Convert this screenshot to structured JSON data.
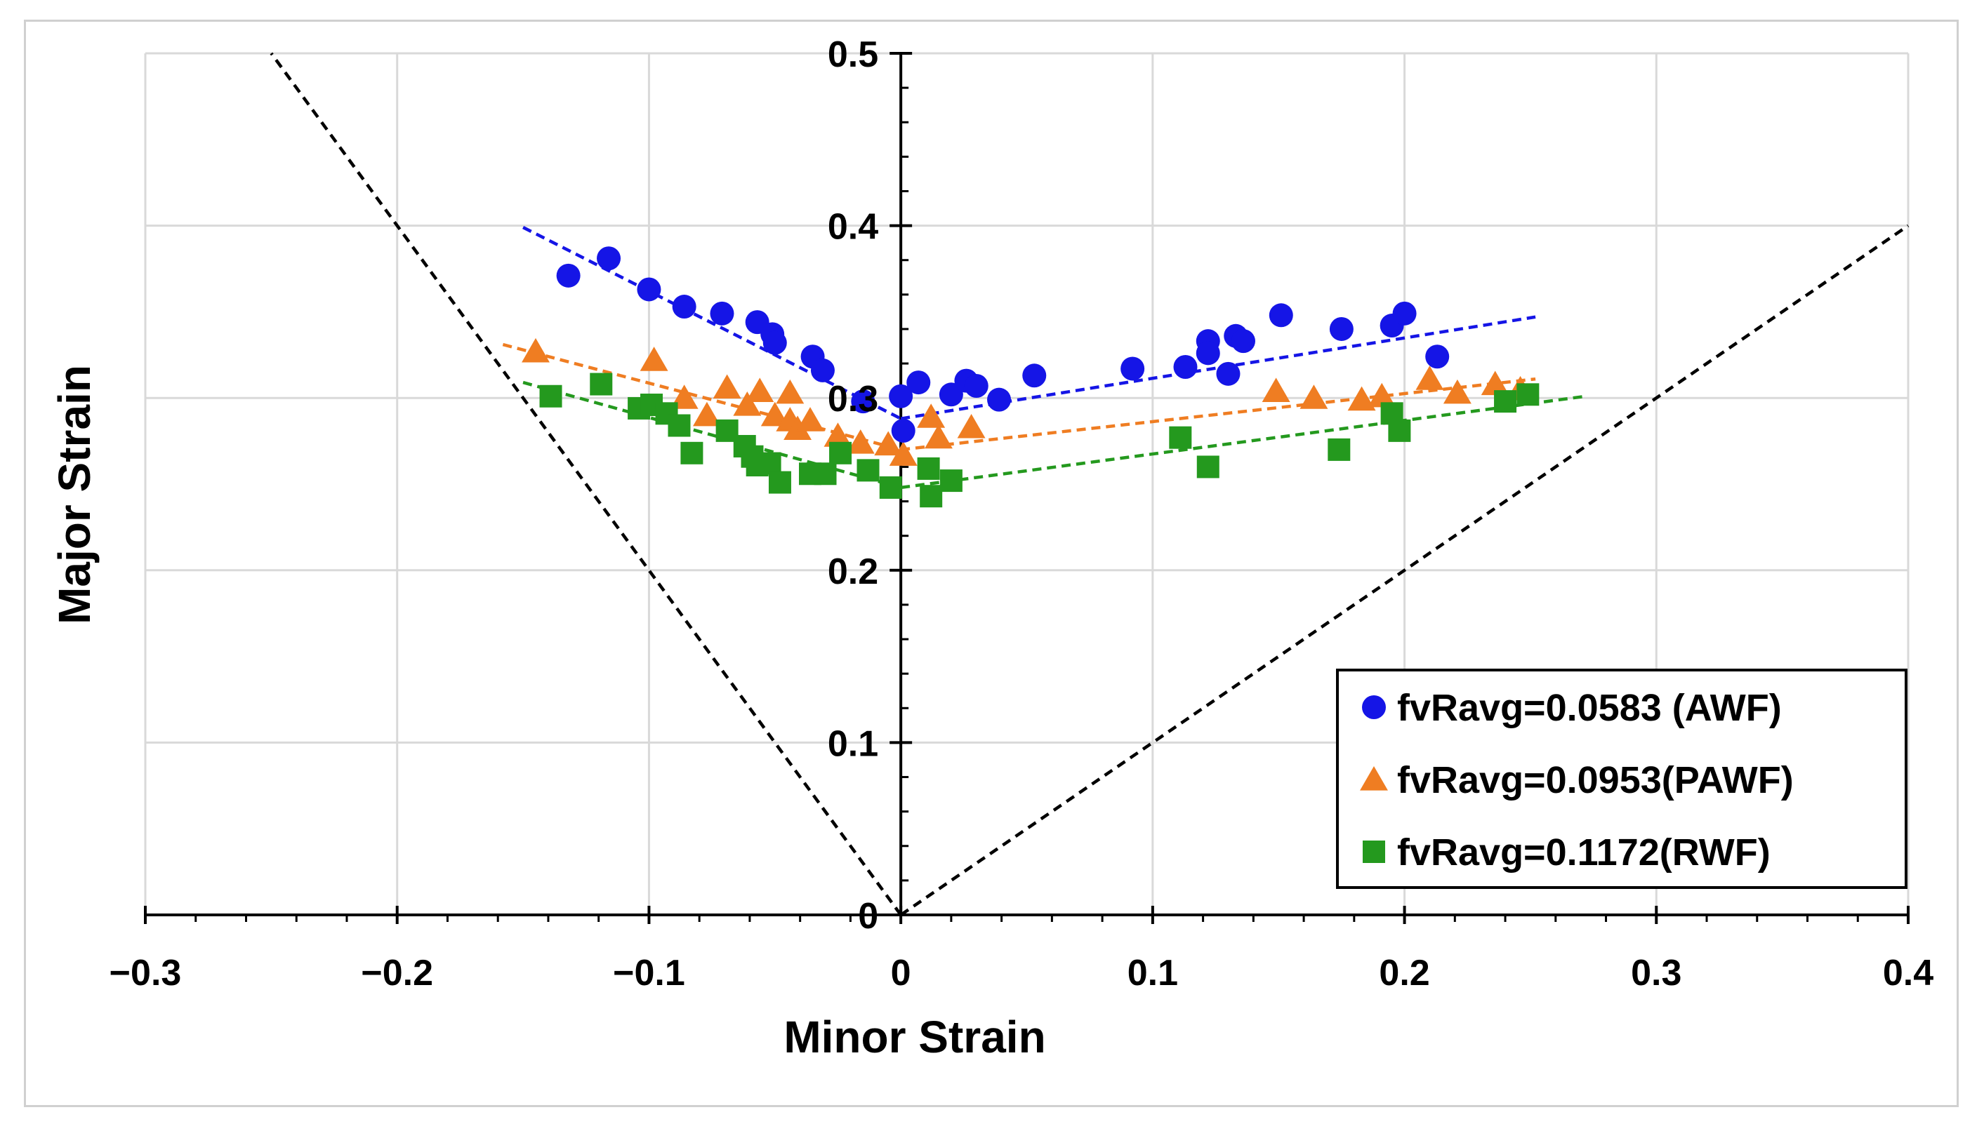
{
  "chart_data": {
    "type": "scatter",
    "title": "",
    "xlabel": "Minor Strain",
    "ylabel": "Major Strain",
    "xlim": [
      -0.3,
      0.4
    ],
    "ylim": [
      0,
      0.5
    ],
    "x_ticks": [
      -0.3,
      -0.2,
      -0.1,
      0,
      0.1,
      0.2,
      0.3,
      0.4
    ],
    "x_tick_labels": [
      "−0.3",
      "−0.2",
      "−0.1",
      "0",
      "0.1",
      "0.2",
      "0.3",
      "0.4"
    ],
    "y_ticks": [
      0,
      0.1,
      0.2,
      0.3,
      0.4,
      0.5
    ],
    "y_tick_labels": [
      "0",
      "0.1",
      "0.2",
      "0.3",
      "0.4",
      "0.5"
    ],
    "grid": true,
    "legend_position": "bottom-right",
    "reference_lines": [
      {
        "name": "left-limit-line",
        "color": "#000000",
        "x": [
          0,
          -0.25
        ],
        "y": [
          0,
          0.5
        ]
      },
      {
        "name": "right-limit-line",
        "color": "#000000",
        "x": [
          0,
          0.4
        ],
        "y": [
          0,
          0.4
        ]
      }
    ],
    "series": [
      {
        "name": "fvRavg=0.0583 (AWF)",
        "marker": "circle",
        "color": "#1515e6",
        "points": [
          [
            -0.132,
            0.371
          ],
          [
            -0.116,
            0.381
          ],
          [
            -0.1,
            0.363
          ],
          [
            -0.086,
            0.353
          ],
          [
            -0.071,
            0.349
          ],
          [
            -0.057,
            0.344
          ],
          [
            -0.051,
            0.337
          ],
          [
            -0.05,
            0.332
          ],
          [
            -0.035,
            0.324
          ],
          [
            -0.031,
            0.316
          ],
          [
            -0.015,
            0.298
          ],
          [
            0.0,
            0.301
          ],
          [
            0.001,
            0.281
          ],
          [
            0.007,
            0.309
          ],
          [
            0.02,
            0.302
          ],
          [
            0.026,
            0.31
          ],
          [
            0.03,
            0.307
          ],
          [
            0.039,
            0.299
          ],
          [
            0.053,
            0.313
          ],
          [
            0.092,
            0.317
          ],
          [
            0.113,
            0.318
          ],
          [
            0.122,
            0.333
          ],
          [
            0.122,
            0.326
          ],
          [
            0.13,
            0.314
          ],
          [
            0.133,
            0.336
          ],
          [
            0.136,
            0.333
          ],
          [
            0.151,
            0.348
          ],
          [
            0.175,
            0.34
          ],
          [
            0.195,
            0.342
          ],
          [
            0.2,
            0.349
          ],
          [
            0.213,
            0.324
          ]
        ],
        "trendlines": [
          {
            "x": [
              -0.15,
              0.0
            ],
            "y": [
              0.399,
              0.288
            ]
          },
          {
            "x": [
              0.0,
              0.252
            ],
            "y": [
              0.288,
              0.347
            ]
          }
        ]
      },
      {
        "name": "fvRavg=0.0953(PAWF)",
        "marker": "triangle",
        "color": "#ef7d22",
        "points": [
          [
            -0.145,
            0.327
          ],
          [
            -0.098,
            0.322
          ],
          [
            -0.086,
            0.3
          ],
          [
            -0.077,
            0.29
          ],
          [
            -0.069,
            0.306
          ],
          [
            -0.061,
            0.296
          ],
          [
            -0.056,
            0.304
          ],
          [
            -0.05,
            0.29
          ],
          [
            -0.044,
            0.303
          ],
          [
            -0.044,
            0.287
          ],
          [
            -0.041,
            0.282
          ],
          [
            -0.036,
            0.287
          ],
          [
            -0.025,
            0.278
          ],
          [
            -0.016,
            0.274
          ],
          [
            -0.005,
            0.273
          ],
          [
            0.001,
            0.267
          ],
          [
            0.012,
            0.289
          ],
          [
            0.015,
            0.277
          ],
          [
            0.028,
            0.283
          ],
          [
            0.149,
            0.304
          ],
          [
            0.164,
            0.3
          ],
          [
            0.183,
            0.299
          ],
          [
            0.191,
            0.301
          ],
          [
            0.21,
            0.311
          ],
          [
            0.221,
            0.303
          ],
          [
            0.236,
            0.308
          ],
          [
            0.246,
            0.305
          ]
        ],
        "trendlines": [
          {
            "x": [
              -0.158,
              0.0
            ],
            "y": [
              0.331,
              0.27
            ]
          },
          {
            "x": [
              0.0,
              0.252
            ],
            "y": [
              0.27,
              0.311
            ]
          }
        ]
      },
      {
        "name": "fvRavg=0.1172(RWF)",
        "marker": "square",
        "color": "#24991e",
        "points": [
          [
            -0.139,
            0.301
          ],
          [
            -0.119,
            0.308
          ],
          [
            -0.104,
            0.294
          ],
          [
            -0.099,
            0.296
          ],
          [
            -0.093,
            0.291
          ],
          [
            -0.088,
            0.284
          ],
          [
            -0.083,
            0.268
          ],
          [
            -0.069,
            0.281
          ],
          [
            -0.062,
            0.272
          ],
          [
            -0.059,
            0.266
          ],
          [
            -0.057,
            0.261
          ],
          [
            -0.052,
            0.262
          ],
          [
            -0.048,
            0.251
          ],
          [
            -0.036,
            0.256
          ],
          [
            -0.03,
            0.256
          ],
          [
            -0.024,
            0.268
          ],
          [
            -0.013,
            0.258
          ],
          [
            -0.004,
            0.248
          ],
          [
            0.011,
            0.259
          ],
          [
            0.012,
            0.243
          ],
          [
            0.02,
            0.252
          ],
          [
            0.111,
            0.277
          ],
          [
            0.122,
            0.26
          ],
          [
            0.174,
            0.27
          ],
          [
            0.195,
            0.291
          ],
          [
            0.198,
            0.281
          ],
          [
            0.24,
            0.298
          ],
          [
            0.249,
            0.302
          ]
        ],
        "trendlines": [
          {
            "x": [
              -0.15,
              0.0
            ],
            "y": [
              0.309,
              0.248
            ]
          },
          {
            "x": [
              0.0,
              0.272
            ],
            "y": [
              0.248,
              0.301
            ]
          }
        ]
      }
    ]
  }
}
